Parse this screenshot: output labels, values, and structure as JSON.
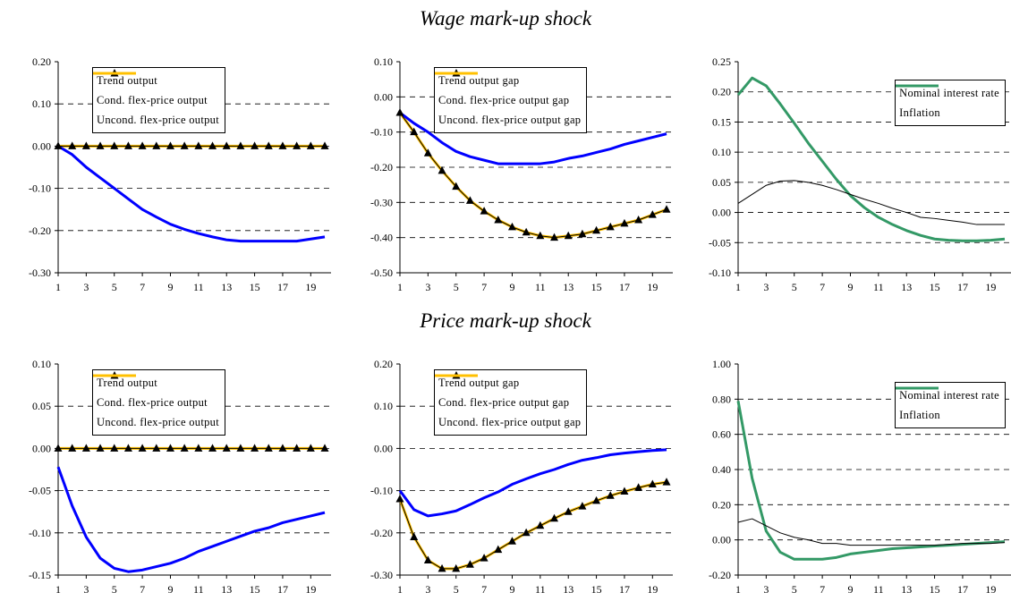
{
  "section_titles": [
    "Wage mark-up shock",
    "Price mark-up shock"
  ],
  "chart_data": [
    {
      "type": "line",
      "x": [
        1,
        2,
        3,
        4,
        5,
        6,
        7,
        8,
        9,
        10,
        11,
        12,
        13,
        14,
        15,
        16,
        17,
        18,
        19,
        20
      ],
      "xlim": [
        1,
        20
      ],
      "xticks": [
        1,
        3,
        5,
        7,
        9,
        11,
        13,
        15,
        17,
        19
      ],
      "ylim": [
        -0.3,
        0.2
      ],
      "yticks": [
        {
          "value": -0.3,
          "label": "-0.30"
        },
        {
          "value": -0.2,
          "label": "-0.20"
        },
        {
          "value": -0.1,
          "label": "-0.10"
        },
        {
          "value": 0,
          "label": "0.00"
        },
        {
          "value": 0.1,
          "label": "0.10"
        },
        {
          "value": 0.2,
          "label": "0.20"
        }
      ],
      "grid": true,
      "legend": "upper center",
      "series": [
        {
          "name": "Trend output",
          "color": "#000000",
          "marker": "triangle",
          "values": [
            0,
            0,
            0,
            0,
            0,
            0,
            0,
            0,
            0,
            0,
            0,
            0,
            0,
            0,
            0,
            0,
            0,
            0,
            0,
            0
          ]
        },
        {
          "name": "Cond. flex-price output",
          "color": "#0000ff",
          "values": [
            0,
            -0.02,
            -0.05,
            -0.075,
            -0.1,
            -0.125,
            -0.15,
            -0.168,
            -0.185,
            -0.197,
            -0.207,
            -0.215,
            -0.222,
            -0.225,
            -0.225,
            -0.225,
            -0.225,
            -0.225,
            -0.22,
            -0.215
          ]
        },
        {
          "name": "Uncond. flex-price output",
          "color": "#ffc000",
          "values": [
            0,
            0,
            0,
            0,
            0,
            0,
            0,
            0,
            0,
            0,
            0,
            0,
            0,
            0,
            0,
            0,
            0,
            0,
            0,
            0
          ]
        }
      ]
    },
    {
      "type": "line",
      "x": [
        1,
        2,
        3,
        4,
        5,
        6,
        7,
        8,
        9,
        10,
        11,
        12,
        13,
        14,
        15,
        16,
        17,
        18,
        19,
        20
      ],
      "xlim": [
        1,
        20
      ],
      "xticks": [
        1,
        3,
        5,
        7,
        9,
        11,
        13,
        15,
        17,
        19
      ],
      "ylim": [
        -0.5,
        0.1
      ],
      "yticks": [
        {
          "value": -0.5,
          "label": "-0.50"
        },
        {
          "value": -0.4,
          "label": "-0.40"
        },
        {
          "value": -0.3,
          "label": "-0.30"
        },
        {
          "value": -0.2,
          "label": "-0.20"
        },
        {
          "value": -0.1,
          "label": "-0.10"
        },
        {
          "value": 0,
          "label": "0.00"
        },
        {
          "value": 0.1,
          "label": "0.10"
        }
      ],
      "grid": true,
      "legend": "upper center",
      "series": [
        {
          "name": "Trend output gap",
          "color": "#000000",
          "marker": "triangle",
          "values": [
            -0.045,
            -0.1,
            -0.16,
            -0.21,
            -0.255,
            -0.295,
            -0.325,
            -0.35,
            -0.37,
            -0.385,
            -0.395,
            -0.4,
            -0.395,
            -0.39,
            -0.38,
            -0.37,
            -0.36,
            -0.35,
            -0.335,
            -0.32
          ]
        },
        {
          "name": "Cond. flex-price output gap",
          "color": "#0000ff",
          "values": [
            -0.045,
            -0.075,
            -0.1,
            -0.13,
            -0.155,
            -0.17,
            -0.18,
            -0.19,
            -0.19,
            -0.19,
            -0.19,
            -0.185,
            -0.175,
            -0.168,
            -0.158,
            -0.148,
            -0.135,
            -0.125,
            -0.115,
            -0.105
          ]
        },
        {
          "name": "Uncond. flex-price output gap",
          "color": "#ffc000",
          "values": [
            -0.045,
            -0.1,
            -0.16,
            -0.21,
            -0.255,
            -0.295,
            -0.325,
            -0.35,
            -0.37,
            -0.385,
            -0.395,
            -0.4,
            -0.395,
            -0.39,
            -0.38,
            -0.37,
            -0.36,
            -0.35,
            -0.335,
            -0.32
          ]
        }
      ]
    },
    {
      "type": "line",
      "x": [
        1,
        2,
        3,
        4,
        5,
        6,
        7,
        8,
        9,
        10,
        11,
        12,
        13,
        14,
        15,
        16,
        17,
        18,
        19,
        20
      ],
      "xlim": [
        1,
        20
      ],
      "xticks": [
        1,
        3,
        5,
        7,
        9,
        11,
        13,
        15,
        17,
        19
      ],
      "ylim": [
        -0.1,
        0.25
      ],
      "yticks": [
        {
          "value": -0.1,
          "label": "-0.10"
        },
        {
          "value": -0.05,
          "label": "-0.05"
        },
        {
          "value": 0,
          "label": "0.00"
        },
        {
          "value": 0.05,
          "label": "0.05"
        },
        {
          "value": 0.1,
          "label": "0.10"
        },
        {
          "value": 0.15,
          "label": "0.15"
        },
        {
          "value": 0.2,
          "label": "0.20"
        },
        {
          "value": 0.25,
          "label": "0.25"
        }
      ],
      "grid": true,
      "legend": "upper right",
      "series": [
        {
          "name": "Nominal interest rate",
          "color": "#000000",
          "values": [
            0.015,
            0.03,
            0.045,
            0.052,
            0.053,
            0.05,
            0.045,
            0.038,
            0.03,
            0.022,
            0.015,
            0.007,
            0,
            -0.008,
            -0.01,
            -0.013,
            -0.016,
            -0.02,
            -0.02,
            -0.02
          ]
        },
        {
          "name": "Inflation",
          "color": "#339966",
          "values": [
            0.195,
            0.223,
            0.21,
            0.18,
            0.148,
            0.115,
            0.085,
            0.055,
            0.028,
            0.008,
            -0.008,
            -0.02,
            -0.03,
            -0.038,
            -0.044,
            -0.046,
            -0.047,
            -0.047,
            -0.046,
            -0.044
          ]
        }
      ]
    },
    {
      "type": "line",
      "x": [
        1,
        2,
        3,
        4,
        5,
        6,
        7,
        8,
        9,
        10,
        11,
        12,
        13,
        14,
        15,
        16,
        17,
        18,
        19,
        20
      ],
      "xlim": [
        1,
        20
      ],
      "xticks": [
        1,
        3,
        5,
        7,
        9,
        11,
        13,
        15,
        17,
        19
      ],
      "ylim": [
        -0.15,
        0.1
      ],
      "yticks": [
        {
          "value": -0.15,
          "label": "-0.15"
        },
        {
          "value": -0.1,
          "label": "-0.10"
        },
        {
          "value": -0.05,
          "label": "-0.05"
        },
        {
          "value": 0,
          "label": "0.00"
        },
        {
          "value": 0.05,
          "label": "0.05"
        },
        {
          "value": 0.1,
          "label": "0.10"
        }
      ],
      "grid": true,
      "legend": "upper center",
      "series": [
        {
          "name": "Trend output",
          "color": "#000000",
          "marker": "triangle",
          "values": [
            0,
            0,
            0,
            0,
            0,
            0,
            0,
            0,
            0,
            0,
            0,
            0,
            0,
            0,
            0,
            0,
            0,
            0,
            0,
            0
          ]
        },
        {
          "name": "Cond. flex-price output",
          "color": "#0000ff",
          "values": [
            -0.022,
            -0.068,
            -0.105,
            -0.13,
            -0.142,
            -0.146,
            -0.144,
            -0.14,
            -0.136,
            -0.13,
            -0.122,
            -0.116,
            -0.11,
            -0.104,
            -0.098,
            -0.094,
            -0.088,
            -0.084,
            -0.08,
            -0.076
          ]
        },
        {
          "name": "Uncond. flex-price output",
          "color": "#ffc000",
          "values": [
            0,
            0,
            0,
            0,
            0,
            0,
            0,
            0,
            0,
            0,
            0,
            0,
            0,
            0,
            0,
            0,
            0,
            0,
            0,
            0
          ]
        }
      ]
    },
    {
      "type": "line",
      "x": [
        1,
        2,
        3,
        4,
        5,
        6,
        7,
        8,
        9,
        10,
        11,
        12,
        13,
        14,
        15,
        16,
        17,
        18,
        19,
        20
      ],
      "xlim": [
        1,
        20
      ],
      "xticks": [
        1,
        3,
        5,
        7,
        9,
        11,
        13,
        15,
        17,
        19
      ],
      "ylim": [
        -0.3,
        0.2
      ],
      "yticks": [
        {
          "value": -0.3,
          "label": "-0.30"
        },
        {
          "value": -0.2,
          "label": "-0.20"
        },
        {
          "value": -0.1,
          "label": "-0.10"
        },
        {
          "value": 0,
          "label": "0.00"
        },
        {
          "value": 0.1,
          "label": "0.10"
        },
        {
          "value": 0.2,
          "label": "0.20"
        }
      ],
      "grid": true,
      "legend": "upper center",
      "series": [
        {
          "name": "Trend output gap",
          "color": "#000000",
          "marker": "triangle",
          "values": [
            -0.12,
            -0.21,
            -0.265,
            -0.285,
            -0.285,
            -0.275,
            -0.26,
            -0.24,
            -0.22,
            -0.2,
            -0.183,
            -0.166,
            -0.15,
            -0.137,
            -0.124,
            -0.112,
            -0.102,
            -0.093,
            -0.085,
            -0.08
          ]
        },
        {
          "name": "Cond. flex-price output gap",
          "color": "#0000ff",
          "values": [
            -0.1,
            -0.145,
            -0.16,
            -0.155,
            -0.148,
            -0.133,
            -0.117,
            -0.103,
            -0.085,
            -0.072,
            -0.06,
            -0.05,
            -0.038,
            -0.028,
            -0.022,
            -0.015,
            -0.011,
            -0.008,
            -0.005,
            -0.003
          ]
        },
        {
          "name": "Uncond. flex-price output gap",
          "color": "#ffc000",
          "values": [
            -0.12,
            -0.21,
            -0.265,
            -0.285,
            -0.285,
            -0.275,
            -0.26,
            -0.24,
            -0.22,
            -0.2,
            -0.183,
            -0.166,
            -0.15,
            -0.137,
            -0.124,
            -0.112,
            -0.102,
            -0.093,
            -0.085,
            -0.08
          ]
        }
      ]
    },
    {
      "type": "line",
      "x": [
        1,
        2,
        3,
        4,
        5,
        6,
        7,
        8,
        9,
        10,
        11,
        12,
        13,
        14,
        15,
        16,
        17,
        18,
        19,
        20
      ],
      "xlim": [
        1,
        20
      ],
      "xticks": [
        1,
        3,
        5,
        7,
        9,
        11,
        13,
        15,
        17,
        19
      ],
      "ylim": [
        -0.2,
        1.0
      ],
      "yticks": [
        {
          "value": -0.2,
          "label": "-0.20"
        },
        {
          "value": 0,
          "label": "0.00"
        },
        {
          "value": 0.2,
          "label": "0.20"
        },
        {
          "value": 0.4,
          "label": "0.40"
        },
        {
          "value": 0.6,
          "label": "0.60"
        },
        {
          "value": 0.8,
          "label": "0.80"
        },
        {
          "value": 1.0,
          "label": "1.00"
        }
      ],
      "grid": true,
      "legend": "upper right",
      "series": [
        {
          "name": "Nominal interest rate",
          "color": "#000000",
          "values": [
            0.1,
            0.12,
            0.08,
            0.04,
            0.015,
            0,
            -0.02,
            -0.02,
            -0.03,
            -0.03,
            -0.03,
            -0.03,
            -0.03,
            -0.03,
            -0.03,
            -0.025,
            -0.02,
            -0.02,
            -0.02,
            -0.015
          ]
        },
        {
          "name": "Inflation",
          "color": "#339966",
          "values": [
            0.79,
            0.35,
            0.05,
            -0.07,
            -0.11,
            -0.11,
            -0.11,
            -0.1,
            -0.08,
            -0.07,
            -0.06,
            -0.05,
            -0.045,
            -0.04,
            -0.035,
            -0.03,
            -0.025,
            -0.02,
            -0.015,
            -0.01
          ]
        }
      ]
    }
  ]
}
